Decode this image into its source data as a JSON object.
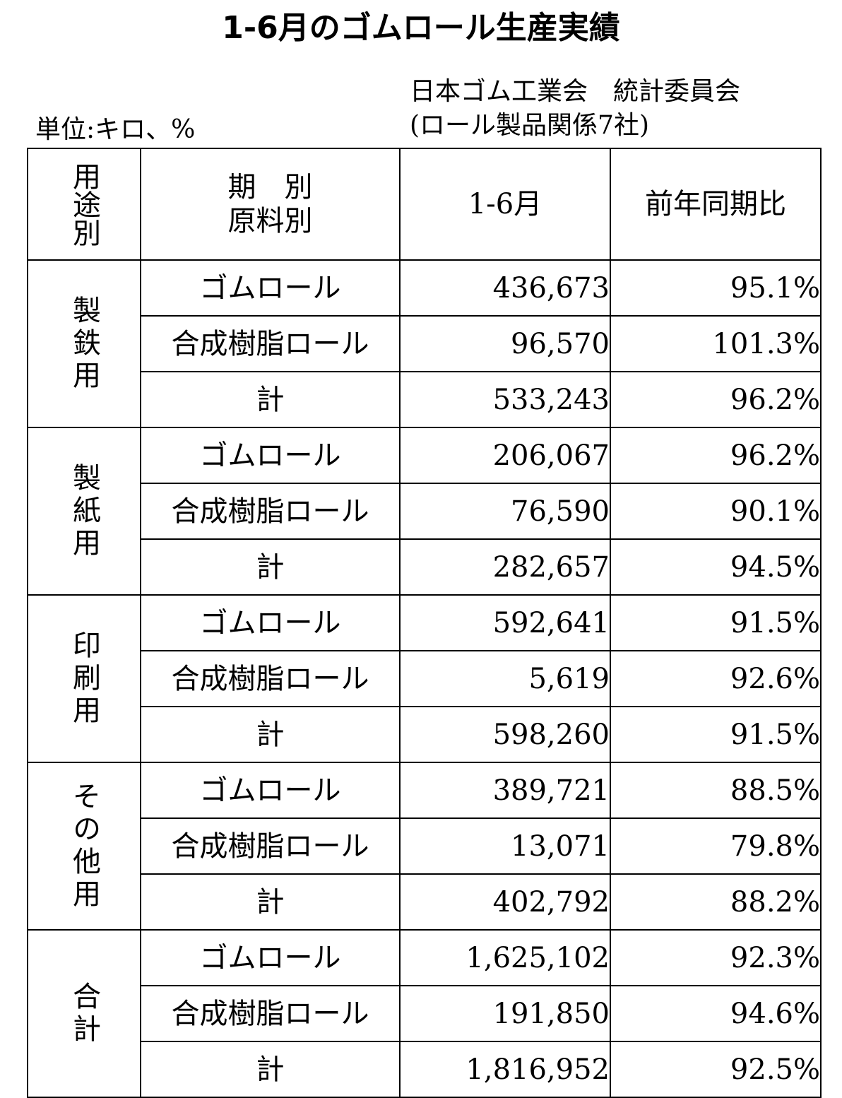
{
  "title": "1-6月のゴムロール生産実績",
  "source_line1": "日本ゴム工業会　統計委員会",
  "source_line2": "(ロール製品関係7社)",
  "unit": "単位:キロ、%",
  "header": {
    "use": "用途別",
    "period": "期　別",
    "material": "原料別",
    "value": "1-6月",
    "ratio": "前年同期比"
  },
  "groups": [
    {
      "use": "製鉄用",
      "rows": [
        {
          "material": "ゴムロール",
          "value": "436,673",
          "ratio": "95.1%"
        },
        {
          "material": "合成樹脂ロール",
          "value": "96,570",
          "ratio": "101.3%"
        },
        {
          "material": "計",
          "value": "533,243",
          "ratio": "96.2%"
        }
      ]
    },
    {
      "use": "製紙用",
      "rows": [
        {
          "material": "ゴムロール",
          "value": "206,067",
          "ratio": "96.2%"
        },
        {
          "material": "合成樹脂ロール",
          "value": "76,590",
          "ratio": "90.1%"
        },
        {
          "material": "計",
          "value": "282,657",
          "ratio": "94.5%"
        }
      ]
    },
    {
      "use": "印刷用",
      "rows": [
        {
          "material": "ゴムロール",
          "value": "592,641",
          "ratio": "91.5%"
        },
        {
          "material": "合成樹脂ロール",
          "value": "5,619",
          "ratio": "92.6%"
        },
        {
          "material": "計",
          "value": "598,260",
          "ratio": "91.5%"
        }
      ]
    },
    {
      "use": "その他用",
      "rows": [
        {
          "material": "ゴムロール",
          "value": "389,721",
          "ratio": "88.5%"
        },
        {
          "material": "合成樹脂ロール",
          "value": "13,071",
          "ratio": "79.8%"
        },
        {
          "material": "計",
          "value": "402,792",
          "ratio": "88.2%"
        }
      ]
    },
    {
      "use": "合計",
      "rows": [
        {
          "material": "ゴムロール",
          "value": "1,625,102",
          "ratio": "92.3%"
        },
        {
          "material": "合成樹脂ロール",
          "value": "191,850",
          "ratio": "94.6%"
        },
        {
          "material": "計",
          "value": "1,816,952",
          "ratio": "92.5%"
        }
      ]
    }
  ]
}
